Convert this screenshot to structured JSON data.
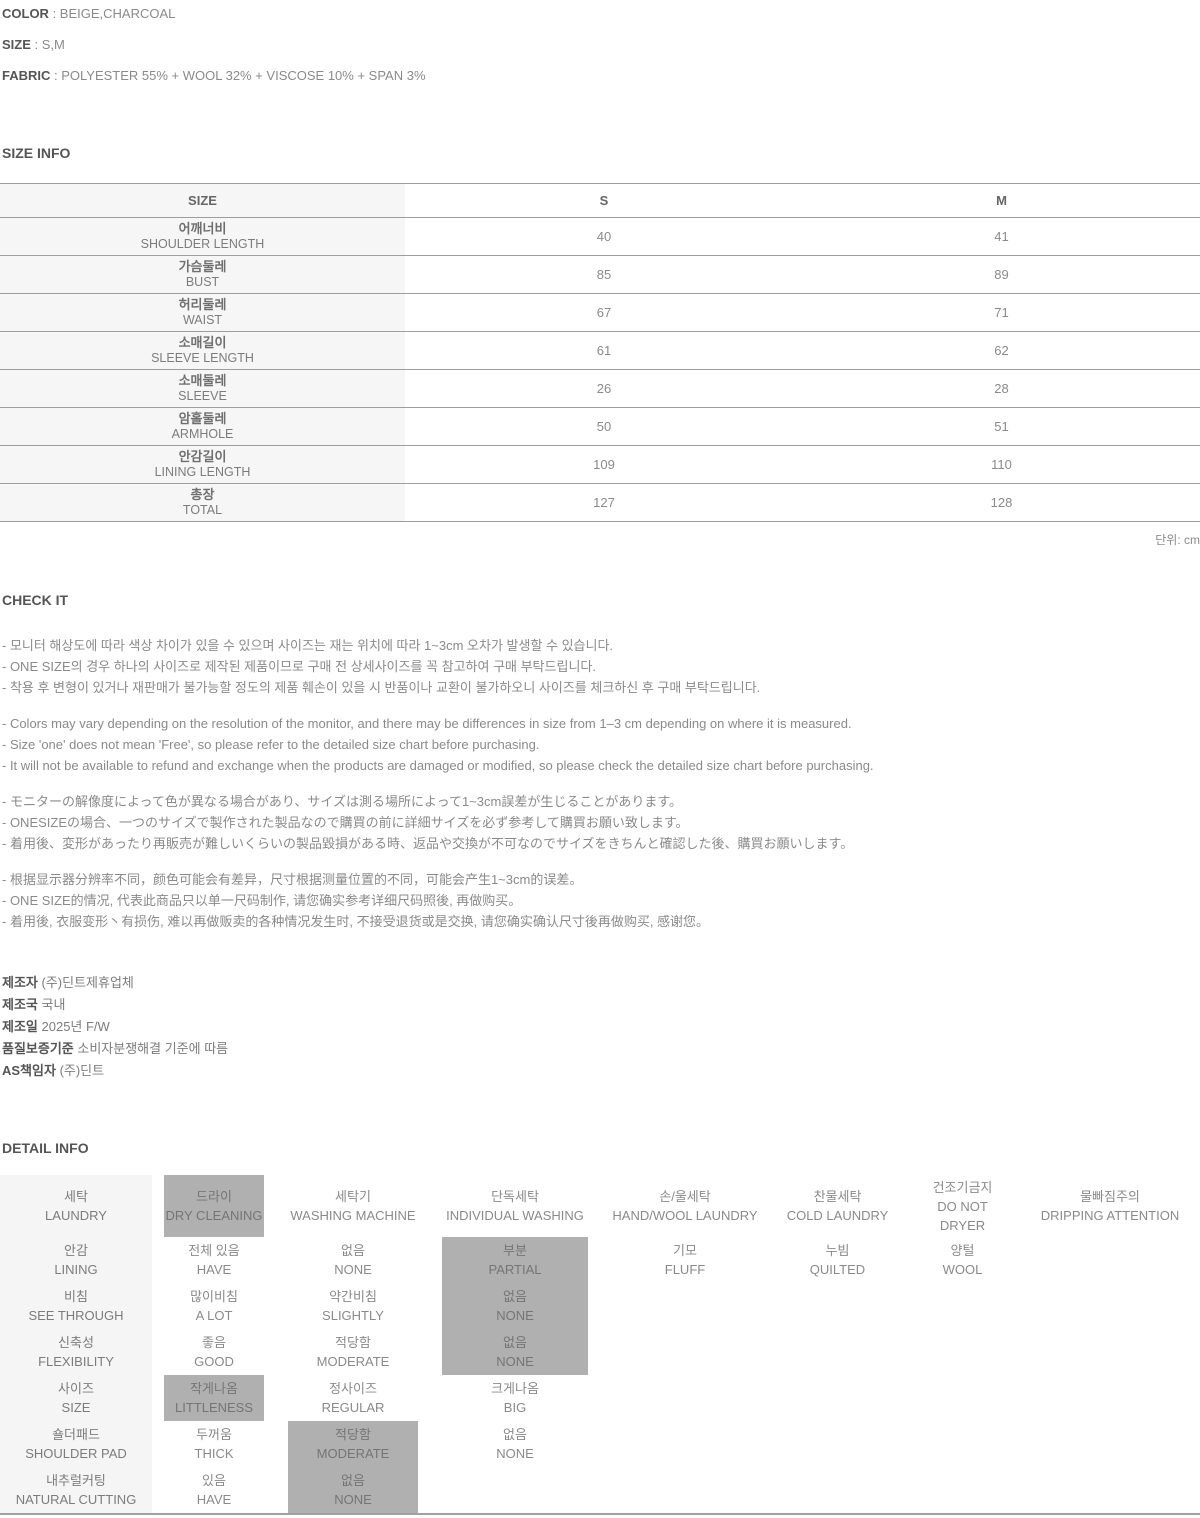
{
  "product_info": {
    "lines": [
      {
        "label": "COLOR",
        "value": " : BEIGE,CHARCOAL"
      },
      {
        "label": "SIZE",
        "value": " : S,M"
      },
      {
        "label": "FABRIC",
        "value": " : POLYESTER 55% + WOOL 32% + VISCOSE 10% + SPAN 3%"
      }
    ]
  },
  "section_titles": {
    "size_info": "SIZE INFO",
    "check_it": "CHECK IT",
    "detail_info": "DETAIL INFO"
  },
  "size_table": {
    "header": {
      "label": "SIZE",
      "s": "S",
      "m": "M"
    },
    "rows": [
      {
        "kr": "어깨너비",
        "en": "SHOULDER LENGTH",
        "s": "40",
        "m": "41"
      },
      {
        "kr": "가슴둘레",
        "en": "BUST",
        "s": "85",
        "m": "89"
      },
      {
        "kr": "허리둘레",
        "en": "WAIST",
        "s": "67",
        "m": "71"
      },
      {
        "kr": "소매길이",
        "en": "SLEEVE LENGTH",
        "s": "61",
        "m": "62"
      },
      {
        "kr": "소매둘레",
        "en": "SLEEVE",
        "s": "26",
        "m": "28"
      },
      {
        "kr": "암홀둘레",
        "en": "ARMHOLE",
        "s": "50",
        "m": "51"
      },
      {
        "kr": "안감길이",
        "en": "LINING LENGTH",
        "s": "109",
        "m": "110"
      },
      {
        "kr": "총장",
        "en": "TOTAL",
        "s": "127",
        "m": "128"
      }
    ],
    "unit_note": "단위: cm"
  },
  "check_it": {
    "ko": [
      "- 모니터 해상도에 따라 색상 차이가 있을 수 있으며 사이즈는 재는 위치에 따라 1~3cm 오차가 발생할 수 있습니다.",
      "- ONE SIZE의 경우 하나의 사이즈로 제작된 제품이므로 구매 전 상세사이즈를 꼭 참고하여 구매 부탁드립니다.",
      "- 착용 후 변형이 있거나 재판매가 불가능할 정도의 제품 훼손이 있을 시 반품이나 교환이 불가하오니 사이즈를 체크하신 후 구매 부탁드립니다."
    ],
    "en": [
      "- Colors may vary depending on the resolution of the monitor, and there may be differences in size from 1–3 cm depending on where it is measured.",
      "- Size 'one' does not mean 'Free', so please refer to the detailed size chart before purchasing.",
      "- It will not be available to refund and exchange when the products are damaged or modified, so please check the detailed size chart before purchasing."
    ],
    "ja": [
      "- モニターの解像度によって色が異なる場合があり、サイズは測る場所によって1~3cm誤差が生じることがあります。",
      "- ONESIZEの場合、一つのサイズで製作された製品なので購買の前に詳細サイズを必ず参考して購買お願い致します。",
      "- 着用後、変形があったり再販売が難しいくらいの製品毀損がある時、返品や交換が不可なのでサイズをきちんと確認した後、購買お願いします。"
    ],
    "zh": [
      "- 根据显示器分辨率不同，颜色可能会有差异，尺寸根据测量位置的不同，可能会产生1~3cm的误差。",
      "- ONE SIZE的情况, 代表此商品只以单一尺码制作, 请您确实参考详细尺码照後, 再做购买。",
      "- 着用後, 衣服变形丶有损伤, 难以再做贩卖的各种情况发生时, 不接受退货或是交换, 请您确实确认尺寸後再做购买, 感谢您。"
    ]
  },
  "manufacturer": [
    {
      "label": "제조자",
      "value": " (주)딘트제휴업체"
    },
    {
      "label": "제조국",
      "value": " 국내"
    },
    {
      "label": "제조일",
      "value": " 2025년 F/W"
    },
    {
      "label": "품질보증기준",
      "value": " 소비자분쟁해결 기준에 따름"
    },
    {
      "label": "AS책임자",
      "value": " (주)딘트"
    }
  ],
  "detail_table": {
    "rows": [
      {
        "label": {
          "kr": "세탁",
          "en": "LAUNDRY"
        },
        "options": [
          {
            "kr": "드라이",
            "en": "DRY CLEANING",
            "selected": true
          },
          {
            "kr": "세탁기",
            "en": "WASHING MACHINE"
          },
          {
            "kr": "단독세탁",
            "en": "INDIVIDUAL WASHING"
          },
          {
            "kr": "손/울세탁",
            "en": "HAND/WOOL LAUNDRY"
          },
          {
            "kr": "찬물세탁",
            "en": "COLD LAUNDRY"
          },
          {
            "kr": "건조기금지",
            "en": "DO NOT DRYER"
          },
          {
            "kr": "물빠짐주의",
            "en": "DRIPPING ATTENTION"
          }
        ]
      },
      {
        "label": {
          "kr": "안감",
          "en": "LINING"
        },
        "options": [
          {
            "kr": "전체 있음",
            "en": "HAVE"
          },
          {
            "kr": "없음",
            "en": "NONE"
          },
          {
            "kr": "부분",
            "en": "PARTIAL",
            "selected": true
          },
          {
            "kr": "기모",
            "en": "FLUFF"
          },
          {
            "kr": "누빔",
            "en": "QUILTED"
          },
          {
            "kr": "양털",
            "en": "WOOL"
          }
        ]
      },
      {
        "label": {
          "kr": "비침",
          "en": "SEE THROUGH"
        },
        "options": [
          {
            "kr": "많이비침",
            "en": "A LOT"
          },
          {
            "kr": "약간비침",
            "en": "SLIGHTLY"
          },
          {
            "kr": "없음",
            "en": "NONE",
            "selected": true
          }
        ]
      },
      {
        "label": {
          "kr": "신축성",
          "en": "FLEXIBILITY"
        },
        "options": [
          {
            "kr": "좋음",
            "en": "GOOD"
          },
          {
            "kr": "적당함",
            "en": "MODERATE"
          },
          {
            "kr": "없음",
            "en": "NONE",
            "selected": true
          }
        ]
      },
      {
        "label": {
          "kr": "사이즈",
          "en": "SIZE"
        },
        "options": [
          {
            "kr": "작게나옴",
            "en": "LITTLENESS",
            "selected": true
          },
          {
            "kr": "정사이즈",
            "en": "REGULAR"
          },
          {
            "kr": "크게나옴",
            "en": "BIG"
          }
        ]
      },
      {
        "label": {
          "kr": "숄더패드",
          "en": "SHOULDER PAD"
        },
        "options": [
          {
            "kr": "두꺼움",
            "en": "THICK"
          },
          {
            "kr": "적당함",
            "en": "MODERATE",
            "selected": true
          },
          {
            "kr": "없음",
            "en": "NONE"
          }
        ]
      },
      {
        "label": {
          "kr": "내추럴커팅",
          "en": "NATURAL CUTTING"
        },
        "options": [
          {
            "kr": "있음",
            "en": "HAVE"
          },
          {
            "kr": "없음",
            "en": "NONE",
            "selected": true
          }
        ]
      }
    ]
  },
  "colors": {
    "highlight": "#b0b0b0",
    "label_bg": "#f5f5f5",
    "border": "#9d9d9d"
  }
}
